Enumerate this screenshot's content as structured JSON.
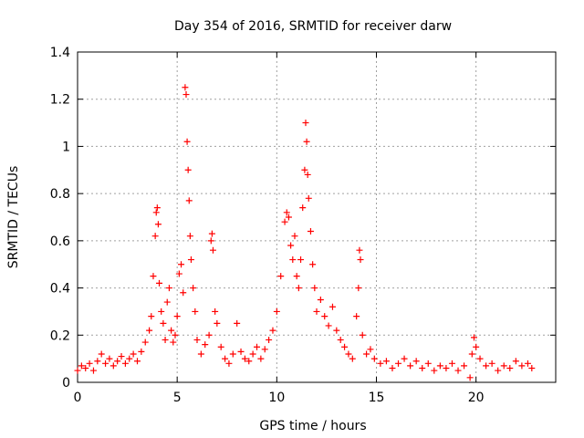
{
  "chart_data": {
    "type": "scatter",
    "title": "Day 354 of 2016, SRMTID for receiver darw",
    "xlabel": "GPS time / hours",
    "ylabel": "SRMTID / TECUs",
    "xlim": [
      0,
      24
    ],
    "ylim": [
      0,
      1.4
    ],
    "xticks": [
      0,
      5,
      10,
      15,
      20
    ],
    "xtick_labels": [
      "0",
      "5",
      "10",
      "15",
      "20"
    ],
    "yticks": [
      0,
      0.2,
      0.4,
      0.6,
      0.8,
      1.0,
      1.2,
      1.4
    ],
    "ytick_labels": [
      "0",
      "0.2",
      "0.4",
      "0.6",
      "0.8",
      "1",
      "1.2",
      "1.4"
    ],
    "grid": true,
    "marker": "plus",
    "color": "#ff0000",
    "series": [
      {
        "name": "SRMTID",
        "points": [
          [
            0.0,
            0.05
          ],
          [
            0.2,
            0.07
          ],
          [
            0.4,
            0.06
          ],
          [
            0.6,
            0.08
          ],
          [
            0.8,
            0.05
          ],
          [
            1.0,
            0.09
          ],
          [
            1.2,
            0.12
          ],
          [
            1.4,
            0.08
          ],
          [
            1.6,
            0.1
          ],
          [
            1.8,
            0.07
          ],
          [
            2.0,
            0.09
          ],
          [
            2.2,
            0.11
          ],
          [
            2.4,
            0.08
          ],
          [
            2.6,
            0.1
          ],
          [
            2.8,
            0.12
          ],
          [
            3.0,
            0.09
          ],
          [
            3.2,
            0.13
          ],
          [
            3.4,
            0.17
          ],
          [
            3.6,
            0.22
          ],
          [
            3.7,
            0.28
          ],
          [
            3.8,
            0.45
          ],
          [
            3.9,
            0.62
          ],
          [
            3.95,
            0.72
          ],
          [
            4.0,
            0.74
          ],
          [
            4.05,
            0.67
          ],
          [
            4.1,
            0.42
          ],
          [
            4.2,
            0.3
          ],
          [
            4.3,
            0.25
          ],
          [
            4.4,
            0.18
          ],
          [
            4.5,
            0.34
          ],
          [
            4.6,
            0.4
          ],
          [
            4.7,
            0.22
          ],
          [
            4.8,
            0.17
          ],
          [
            4.9,
            0.2
          ],
          [
            5.0,
            0.28
          ],
          [
            5.1,
            0.46
          ],
          [
            5.2,
            0.5
          ],
          [
            5.3,
            0.38
          ],
          [
            5.4,
            1.25
          ],
          [
            5.45,
            1.22
          ],
          [
            5.5,
            1.02
          ],
          [
            5.55,
            0.9
          ],
          [
            5.6,
            0.77
          ],
          [
            5.65,
            0.62
          ],
          [
            5.7,
            0.52
          ],
          [
            5.8,
            0.4
          ],
          [
            5.9,
            0.3
          ],
          [
            6.0,
            0.18
          ],
          [
            6.2,
            0.12
          ],
          [
            6.4,
            0.16
          ],
          [
            6.6,
            0.2
          ],
          [
            6.7,
            0.6
          ],
          [
            6.75,
            0.63
          ],
          [
            6.8,
            0.56
          ],
          [
            6.9,
            0.3
          ],
          [
            7.0,
            0.25
          ],
          [
            7.2,
            0.15
          ],
          [
            7.4,
            0.1
          ],
          [
            7.6,
            0.08
          ],
          [
            7.8,
            0.12
          ],
          [
            8.0,
            0.25
          ],
          [
            8.2,
            0.13
          ],
          [
            8.4,
            0.1
          ],
          [
            8.6,
            0.09
          ],
          [
            8.8,
            0.12
          ],
          [
            9.0,
            0.15
          ],
          [
            9.2,
            0.1
          ],
          [
            9.4,
            0.14
          ],
          [
            9.6,
            0.18
          ],
          [
            9.8,
            0.22
          ],
          [
            10.0,
            0.3
          ],
          [
            10.2,
            0.45
          ],
          [
            10.4,
            0.68
          ],
          [
            10.5,
            0.72
          ],
          [
            10.6,
            0.7
          ],
          [
            10.7,
            0.58
          ],
          [
            10.8,
            0.52
          ],
          [
            10.9,
            0.62
          ],
          [
            11.0,
            0.45
          ],
          [
            11.1,
            0.4
          ],
          [
            11.2,
            0.52
          ],
          [
            11.3,
            0.74
          ],
          [
            11.4,
            0.9
          ],
          [
            11.45,
            1.1
          ],
          [
            11.5,
            1.02
          ],
          [
            11.55,
            0.88
          ],
          [
            11.6,
            0.78
          ],
          [
            11.7,
            0.64
          ],
          [
            11.8,
            0.5
          ],
          [
            11.9,
            0.4
          ],
          [
            12.0,
            0.3
          ],
          [
            12.2,
            0.35
          ],
          [
            12.4,
            0.28
          ],
          [
            12.6,
            0.24
          ],
          [
            12.8,
            0.32
          ],
          [
            13.0,
            0.22
          ],
          [
            13.2,
            0.18
          ],
          [
            13.4,
            0.15
          ],
          [
            13.6,
            0.12
          ],
          [
            13.8,
            0.1
          ],
          [
            14.0,
            0.28
          ],
          [
            14.1,
            0.4
          ],
          [
            14.15,
            0.56
          ],
          [
            14.2,
            0.52
          ],
          [
            14.3,
            0.2
          ],
          [
            14.5,
            0.12
          ],
          [
            14.7,
            0.14
          ],
          [
            14.9,
            0.1
          ],
          [
            15.2,
            0.08
          ],
          [
            15.5,
            0.09
          ],
          [
            15.8,
            0.06
          ],
          [
            16.1,
            0.08
          ],
          [
            16.4,
            0.1
          ],
          [
            16.7,
            0.07
          ],
          [
            17.0,
            0.09
          ],
          [
            17.3,
            0.06
          ],
          [
            17.6,
            0.08
          ],
          [
            17.9,
            0.05
          ],
          [
            18.2,
            0.07
          ],
          [
            18.5,
            0.06
          ],
          [
            18.8,
            0.08
          ],
          [
            19.1,
            0.05
          ],
          [
            19.4,
            0.07
          ],
          [
            19.7,
            0.02
          ],
          [
            19.8,
            0.12
          ],
          [
            19.9,
            0.19
          ],
          [
            20.0,
            0.15
          ],
          [
            20.2,
            0.1
          ],
          [
            20.5,
            0.07
          ],
          [
            20.8,
            0.08
          ],
          [
            21.1,
            0.05
          ],
          [
            21.4,
            0.07
          ],
          [
            21.7,
            0.06
          ],
          [
            22.0,
            0.09
          ],
          [
            22.3,
            0.07
          ],
          [
            22.6,
            0.08
          ],
          [
            22.8,
            0.06
          ]
        ]
      }
    ]
  }
}
